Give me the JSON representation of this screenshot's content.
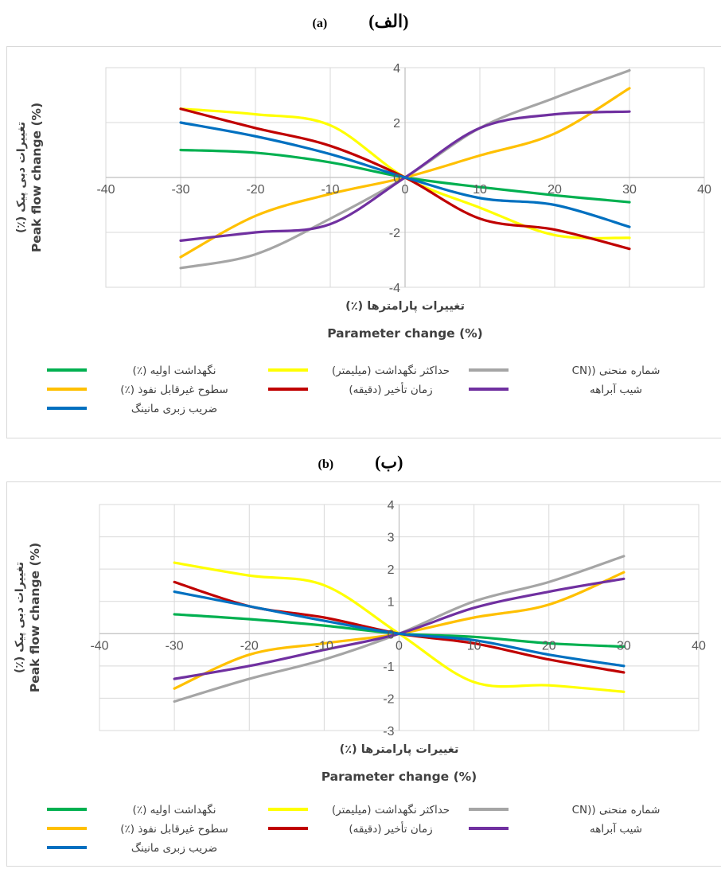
{
  "panels": [
    {
      "label_en": "(a)",
      "label_fa": "(الف)"
    },
    {
      "label_en": "(b)",
      "label_fa": "(ب)"
    }
  ],
  "chart_data": [
    {
      "type": "line",
      "xlabel_fa": "تغییرات پارامترها (٪)",
      "xlabel_en": "Parameter change (%)",
      "ylabel_fa": "تغییرات دبی پیک (٪)",
      "ylabel_en": "Peak flow change (%)",
      "xlim": [
        -40,
        40
      ],
      "ylim": [
        -4,
        4
      ],
      "xticks": [
        -40,
        -30,
        -20,
        -10,
        0,
        10,
        20,
        30,
        40
      ],
      "yticks": [
        -4,
        -2,
        0,
        2,
        4
      ],
      "grid": true,
      "legend_position": "bottom",
      "series": [
        {
          "name": "نگهداشت اولیه (٪)",
          "color": "#00b050",
          "x": [
            -30,
            -20,
            -10,
            0,
            10,
            20,
            30
          ],
          "y": [
            1.0,
            0.9,
            0.55,
            0,
            -0.35,
            -0.65,
            -0.9
          ]
        },
        {
          "name": "حداکثر نگهداشت (میلیمتر)",
          "color": "#ffff00",
          "x": [
            -30,
            -20,
            -10,
            0,
            10,
            20,
            30
          ],
          "y": [
            2.5,
            2.3,
            1.9,
            0,
            -1.1,
            -2.1,
            -2.2
          ]
        },
        {
          "name": "شماره منحنی ((CN",
          "color": "#a5a5a5",
          "x": [
            -30,
            -20,
            -10,
            0,
            10,
            20,
            30
          ],
          "y": [
            -3.3,
            -2.8,
            -1.5,
            0,
            1.8,
            2.9,
            3.9
          ]
        },
        {
          "name": "سطوح غیرقابل نفوذ (٪)",
          "color": "#ffc000",
          "x": [
            -30,
            -20,
            -10,
            0,
            10,
            20,
            30
          ],
          "y": [
            -2.9,
            -1.4,
            -0.6,
            0,
            0.8,
            1.6,
            3.25
          ]
        },
        {
          "name": "زمان تأخیر (دقیقه)",
          "color": "#c00000",
          "x": [
            -30,
            -20,
            -10,
            0,
            10,
            20,
            30
          ],
          "y": [
            2.5,
            1.8,
            1.15,
            0,
            -1.5,
            -1.9,
            -2.6
          ]
        },
        {
          "name": "شیب آبراهه",
          "color": "#7030a0",
          "x": [
            -30,
            -20,
            -10,
            0,
            10,
            20,
            30
          ],
          "y": [
            -2.3,
            -2.0,
            -1.7,
            0,
            1.8,
            2.3,
            2.4
          ]
        },
        {
          "name": "ضریب زبری مانینگ",
          "color": "#0070c0",
          "x": [
            -30,
            -20,
            -10,
            0,
            10,
            20,
            30
          ],
          "y": [
            2.0,
            1.5,
            0.85,
            0,
            -0.75,
            -1.0,
            -1.8
          ]
        }
      ]
    },
    {
      "type": "line",
      "xlabel_fa": "تغییرات پارامترها (٪)",
      "xlabel_en": "Parameter change (%)",
      "ylabel_fa": "تغییرات دبی پیک (٪)",
      "ylabel_en": "Peak flow change (%)",
      "xlim": [
        -40,
        40
      ],
      "ylim": [
        -3,
        4
      ],
      "xticks": [
        -40,
        -30,
        -20,
        -10,
        0,
        10,
        20,
        30,
        40
      ],
      "yticks": [
        -3,
        -2,
        -1,
        0,
        1,
        2,
        3,
        4
      ],
      "grid": true,
      "legend_position": "bottom",
      "series": [
        {
          "name": "نگهداشت اولیه (٪)",
          "color": "#00b050",
          "x": [
            -30,
            -20,
            -10,
            0,
            10,
            20,
            30
          ],
          "y": [
            0.6,
            0.45,
            0.25,
            0,
            -0.1,
            -0.3,
            -0.4
          ]
        },
        {
          "name": "حداکثر نگهداشت (میلیمتر)",
          "color": "#ffff00",
          "x": [
            -30,
            -20,
            -10,
            0,
            10,
            20,
            30
          ],
          "y": [
            2.2,
            1.8,
            1.5,
            0,
            -1.5,
            -1.6,
            -1.8
          ]
        },
        {
          "name": "شماره منحنی ((CN",
          "color": "#a5a5a5",
          "x": [
            -30,
            -20,
            -10,
            0,
            10,
            20,
            30
          ],
          "y": [
            -2.1,
            -1.4,
            -0.8,
            0,
            1.0,
            1.6,
            2.4
          ]
        },
        {
          "name": "سطوح غیرقابل نفوذ (٪)",
          "color": "#ffc000",
          "x": [
            -30,
            -20,
            -10,
            0,
            10,
            20,
            30
          ],
          "y": [
            -1.7,
            -0.65,
            -0.3,
            0,
            0.5,
            0.9,
            1.9
          ]
        },
        {
          "name": "زمان تأخیر (دقیقه)",
          "color": "#c00000",
          "x": [
            -30,
            -20,
            -10,
            0,
            10,
            20,
            30
          ],
          "y": [
            1.6,
            0.85,
            0.5,
            0,
            -0.3,
            -0.8,
            -1.2
          ]
        },
        {
          "name": "شیب آبراهه",
          "color": "#7030a0",
          "x": [
            -30,
            -20,
            -10,
            0,
            10,
            20,
            30
          ],
          "y": [
            -1.4,
            -1.0,
            -0.5,
            0,
            0.8,
            1.3,
            1.7
          ]
        },
        {
          "name": "ضریب زبری مانینگ",
          "color": "#0070c0",
          "x": [
            -30,
            -20,
            -10,
            0,
            10,
            20,
            30
          ],
          "y": [
            1.3,
            0.85,
            0.4,
            0,
            -0.2,
            -0.65,
            -1.0
          ]
        }
      ]
    }
  ]
}
